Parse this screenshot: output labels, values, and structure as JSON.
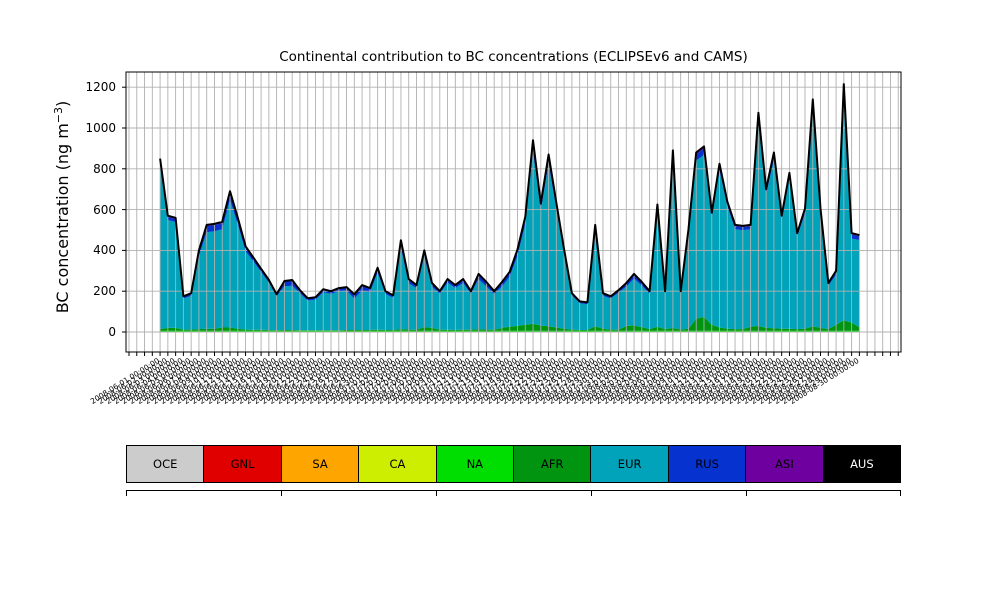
{
  "figure": {
    "title": "Continental contribution to BC concentrations (ECLIPSEv6 and CAMS)",
    "ylabel": {
      "pre": "BC concentration (ng m",
      "sup": "−3",
      "post": ")"
    }
  },
  "legend": {
    "items": [
      {
        "label": "OCE",
        "color": "#cccccc",
        "text_color": "#000000"
      },
      {
        "label": "GNL",
        "color": "#e00000",
        "text_color": "#000000"
      },
      {
        "label": "SA",
        "color": "#ffa500",
        "text_color": "#000000"
      },
      {
        "label": "CA",
        "color": "#cdee00",
        "text_color": "#000000"
      },
      {
        "label": "NA",
        "color": "#00dd00",
        "text_color": "#000000"
      },
      {
        "label": "AFR",
        "color": "#009410",
        "text_color": "#000000"
      },
      {
        "label": "EUR",
        "color": "#00a3ba",
        "text_color": "#000000"
      },
      {
        "label": "RUS",
        "color": "#0633d0",
        "text_color": "#000000"
      },
      {
        "label": "ASI",
        "color": "#6e00a0",
        "text_color": "#000000"
      },
      {
        "label": "AUS",
        "color": "#000000",
        "text_color": "#ffffff"
      }
    ]
  },
  "chart_data": {
    "type": "area",
    "stacked": true,
    "title": "Continental contribution to BC concentrations (ECLIPSEv6 and CAMS)",
    "xlabel": "",
    "ylabel": "BC concentration (ng m^-3)",
    "ylim": [
      -98,
      1275
    ],
    "yticks": [
      0,
      200,
      400,
      600,
      800,
      1000,
      1200
    ],
    "grid": true,
    "legend_position": "bottom",
    "outline_color": "#000000",
    "grid_color": "#b0b0b0",
    "categories": [
      "2008-06-01 00:00:00",
      "2008-06-02 00:00:00",
      "2008-06-03 00:00:00",
      "2008-06-04 00:00:00",
      "2008-06-05 00:00:00",
      "2008-06-06 00:00:00",
      "2008-06-07 00:00:00",
      "2008-06-08 00:00:00",
      "2008-06-09 00:00:00",
      "2008-06-10 00:00:00",
      "2008-06-11 00:00:00",
      "2008-06-12 00:00:00",
      "2008-06-13 00:00:00",
      "2008-06-14 00:00:00",
      "2008-06-15 00:00:00",
      "2008-06-16 00:00:00",
      "2008-06-17 00:00:00",
      "2008-06-18 00:00:00",
      "2008-06-19 00:00:00",
      "2008-06-20 00:00:00",
      "2008-06-21 00:00:00",
      "2008-06-22 00:00:00",
      "2008-06-23 00:00:00",
      "2008-06-24 00:00:00",
      "2008-06-25 00:00:00",
      "2008-06-26 00:00:00",
      "2008-06-27 00:00:00",
      "2008-06-28 00:00:00",
      "2008-06-29 00:00:00",
      "2008-06-30 00:00:00",
      "2008-07-01 00:00:00",
      "2008-07-02 00:00:00",
      "2008-07-03 00:00:00",
      "2008-07-04 00:00:00",
      "2008-07-05 00:00:00",
      "2008-07-06 00:00:00",
      "2008-07-07 00:00:00",
      "2008-07-08 00:00:00",
      "2008-07-09 00:00:00",
      "2008-07-10 00:00:00",
      "2008-07-11 00:00:00",
      "2008-07-12 00:00:00",
      "2008-07-13 00:00:00",
      "2008-07-14 00:00:00",
      "2008-07-15 00:00:00",
      "2008-07-16 00:00:00",
      "2008-07-17 00:00:00",
      "2008-07-18 00:00:00",
      "2008-07-19 00:00:00",
      "2008-07-20 00:00:00",
      "2008-07-21 00:00:00",
      "2008-07-22 00:00:00",
      "2008-07-23 00:00:00",
      "2008-07-24 00:00:00",
      "2008-07-25 00:00:00",
      "2008-07-26 00:00:00",
      "2008-07-27 00:00:00",
      "2008-07-28 00:00:00",
      "2008-07-29 00:00:00",
      "2008-07-30 00:00:00",
      "2008-07-31 00:00:00",
      "2008-08-01 00:00:00",
      "2008-08-02 00:00:00",
      "2008-08-03 00:00:00",
      "2008-08-04 00:00:00",
      "2008-08-05 00:00:00",
      "2008-08-06 00:00:00",
      "2008-08-07 00:00:00",
      "2008-08-08 00:00:00",
      "2008-08-09 00:00:00",
      "2008-08-10 00:00:00",
      "2008-08-11 00:00:00",
      "2008-08-12 00:00:00",
      "2008-08-13 00:00:00",
      "2008-08-14 00:00:00",
      "2008-08-15 00:00:00",
      "2008-08-16 00:00:00",
      "2008-08-17 00:00:00",
      "2008-08-18 00:00:00",
      "2008-08-19 00:00:00",
      "2008-08-20 00:00:00",
      "2008-08-21 00:00:00",
      "2008-08-22 00:00:00",
      "2008-08-23 00:00:00",
      "2008-08-24 00:00:00",
      "2008-08-25 00:00:00",
      "2008-08-26 00:00:00",
      "2008-08-27 00:00:00",
      "2008-08-28 00:00:00",
      "2008-08-29 00:00:00",
      "2008-08-30 00:00:00"
    ],
    "total": [
      850,
      570,
      560,
      175,
      190,
      400,
      525,
      530,
      540,
      690,
      560,
      420,
      365,
      310,
      255,
      185,
      250,
      255,
      205,
      165,
      170,
      210,
      200,
      215,
      220,
      185,
      230,
      215,
      315,
      200,
      180,
      450,
      260,
      230,
      400,
      240,
      200,
      260,
      230,
      260,
      200,
      285,
      245,
      200,
      245,
      295,
      405,
      565,
      940,
      630,
      870,
      635,
      405,
      190,
      150,
      145,
      525,
      190,
      175,
      205,
      240,
      285,
      245,
      200,
      625,
      200,
      890,
      200,
      500,
      880,
      910,
      585,
      825,
      640,
      525,
      520,
      525,
      1075,
      700,
      880,
      570,
      780,
      485,
      605,
      1140,
      605,
      240,
      300,
      1215,
      485,
      475
    ],
    "series": [
      {
        "name": "OCE",
        "color": "#cccccc",
        "constant": 0
      },
      {
        "name": "GNL",
        "color": "#e00000",
        "constant": 0
      },
      {
        "name": "SA",
        "color": "#ffa500",
        "constant": 0
      },
      {
        "name": "CA",
        "color": "#cdee00",
        "constant": 0
      },
      {
        "name": "NA",
        "color": "#00dd00",
        "constant": 6
      },
      {
        "name": "AFR",
        "color": "#009410",
        "values": [
          8,
          14,
          14,
          6,
          6,
          8,
          10,
          10,
          16,
          16,
          10,
          6,
          5,
          5,
          4,
          3,
          4,
          4,
          3,
          3,
          3,
          3,
          3,
          3,
          4,
          4,
          4,
          4,
          6,
          4,
          4,
          8,
          6,
          5,
          18,
          14,
          6,
          5,
          4,
          6,
          5,
          8,
          6,
          5,
          14,
          20,
          24,
          30,
          34,
          26,
          22,
          16,
          10,
          6,
          4,
          4,
          22,
          10,
          6,
          5,
          24,
          26,
          18,
          8,
          20,
          8,
          14,
          6,
          10,
          60,
          68,
          30,
          16,
          10,
          8,
          8,
          20,
          24,
          14,
          12,
          10,
          10,
          8,
          10,
          22,
          14,
          8,
          30,
          52,
          40,
          18
        ]
      },
      {
        "name": "EUR",
        "color": "#00a3ba",
        "remainder": true
      },
      {
        "name": "RUS",
        "color": "#0633d0",
        "values": [
          20,
          15,
          15,
          8,
          10,
          25,
          30,
          30,
          30,
          35,
          28,
          20,
          15,
          12,
          10,
          8,
          22,
          24,
          12,
          8,
          8,
          12,
          10,
          12,
          14,
          18,
          22,
          18,
          20,
          10,
          10,
          30,
          18,
          12,
          25,
          15,
          10,
          14,
          12,
          16,
          10,
          22,
          18,
          12,
          18,
          20,
          25,
          30,
          40,
          30,
          35,
          25,
          15,
          8,
          6,
          6,
          25,
          10,
          8,
          10,
          14,
          18,
          14,
          10,
          28,
          10,
          30,
          10,
          20,
          30,
          32,
          20,
          25,
          18,
          15,
          15,
          15,
          35,
          20,
          25,
          15,
          20,
          12,
          18,
          35,
          18,
          10,
          14,
          40,
          20,
          18
        ]
      },
      {
        "name": "ASI",
        "color": "#6e00a0",
        "values": [
          10,
          6,
          6,
          3,
          3,
          5,
          6,
          6,
          6,
          8,
          6,
          5,
          4,
          4,
          3,
          3,
          4,
          4,
          3,
          3,
          3,
          3,
          3,
          3,
          3,
          4,
          4,
          4,
          4,
          3,
          3,
          6,
          4,
          3,
          5,
          4,
          3,
          4,
          3,
          4,
          3,
          4,
          4,
          3,
          4,
          5,
          6,
          8,
          12,
          8,
          10,
          7,
          5,
          3,
          3,
          3,
          7,
          3,
          3,
          3,
          4,
          5,
          4,
          3,
          8,
          3,
          10,
          3,
          6,
          10,
          10,
          7,
          9,
          7,
          6,
          6,
          6,
          12,
          8,
          10,
          7,
          9,
          6,
          7,
          12,
          7,
          4,
          5,
          14,
          7,
          6
        ]
      },
      {
        "name": "AUS",
        "color": "#000000",
        "constant": 0
      }
    ]
  }
}
